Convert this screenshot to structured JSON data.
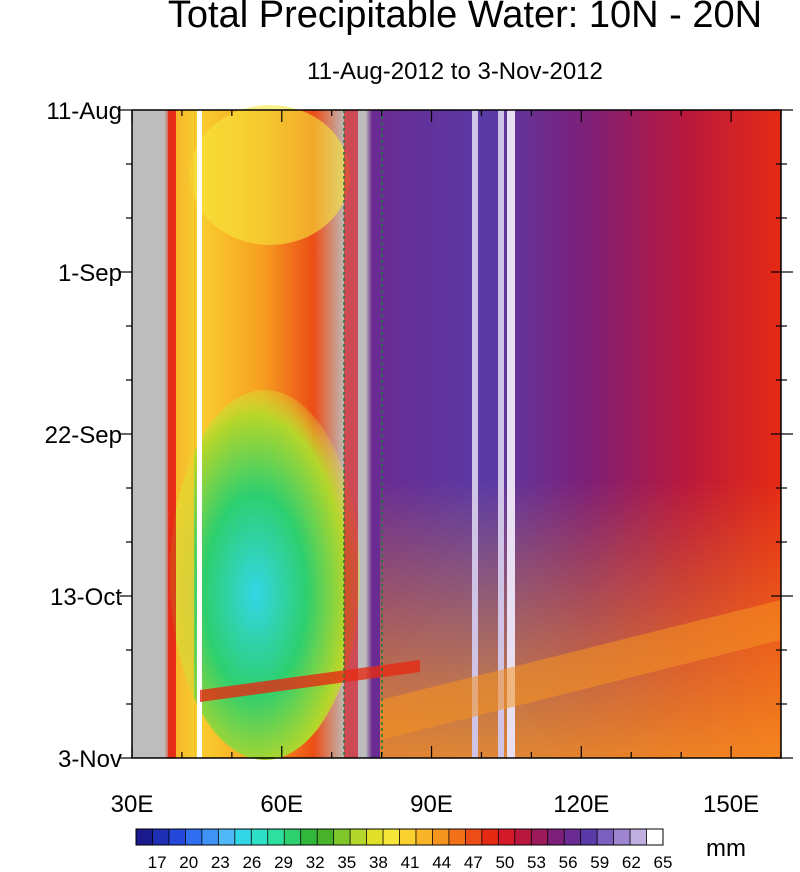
{
  "chart_data": {
    "type": "heatmap",
    "title": "Total Precipitable Water: 10N - 20N",
    "subtitle": "11-Aug-2012 to 3-Nov-2012",
    "x_ticks": [
      "30E",
      "60E",
      "90E",
      "120E",
      "150E"
    ],
    "x_tick_values": [
      30,
      60,
      90,
      120,
      150
    ],
    "xlim": [
      30,
      160
    ],
    "y_ticks": [
      "11-Aug",
      "1-Sep",
      "22-Sep",
      "13-Oct",
      "3-Nov"
    ],
    "y_tick_values": [
      "2012-08-11",
      "2012-09-01",
      "2012-09-22",
      "2012-10-13",
      "2012-11-03"
    ],
    "ylim": [
      "2012-08-11",
      "2012-11-03"
    ],
    "colorbar": {
      "labels": [
        "17",
        "20",
        "23",
        "26",
        "29",
        "32",
        "35",
        "38",
        "41",
        "44",
        "47",
        "50",
        "53",
        "56",
        "59",
        "62",
        "65"
      ],
      "min": 16,
      "max": 65,
      "step": 1,
      "units": "mm",
      "colors": [
        "#1a1a8c",
        "#1f2fb3",
        "#2448d9",
        "#2f6ef0",
        "#3f93f7",
        "#4fb8f7",
        "#33d6e6",
        "#2ee0c6",
        "#2ee0a0",
        "#2ecf6e",
        "#31b83c",
        "#48b22a",
        "#7fc62a",
        "#b5d62a",
        "#e0e02a",
        "#f7e63a",
        "#fbd130",
        "#f9b528",
        "#f69420",
        "#f2721a",
        "#ec4d16",
        "#e52a14",
        "#d41a2a",
        "#b8183e",
        "#9c1a5a",
        "#7d1f78",
        "#6a2b92",
        "#5a3aa6",
        "#7a5fbe",
        "#9d85d0",
        "#c0b0e2",
        "#ffffff"
      ]
    },
    "grid": false
  }
}
